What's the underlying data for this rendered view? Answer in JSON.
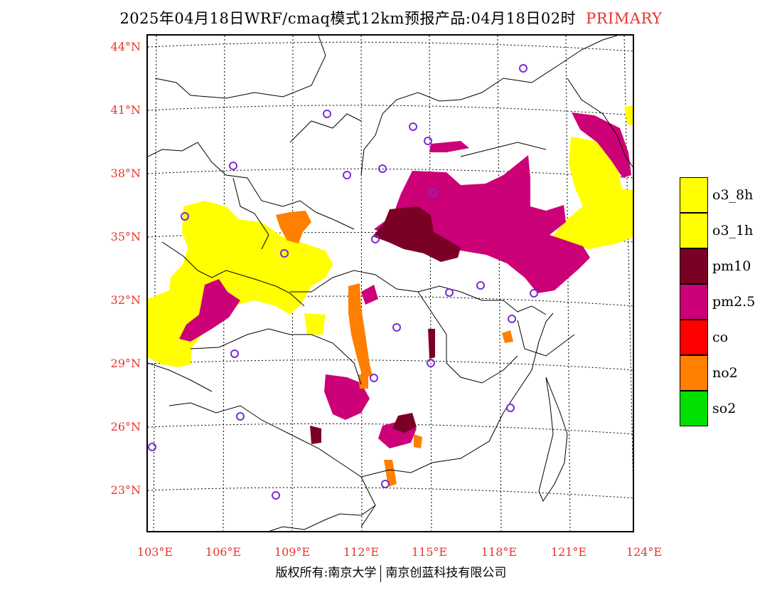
{
  "title": {
    "main": "2025年04月18日WRF/cmaq模式12km预报产品:04月18日02时",
    "tag": "PRIMARY"
  },
  "lat_labels": [
    "44°N",
    "41°N",
    "38°N",
    "35°N",
    "32°N",
    "29°N",
    "26°N",
    "23°N"
  ],
  "lon_labels": [
    "103°E",
    "106°E",
    "109°E",
    "112°E",
    "115°E",
    "118°E",
    "121°E",
    "124°E"
  ],
  "legend": [
    {
      "label": "o3_8h",
      "color": "#ffff00"
    },
    {
      "label": "o3_1h",
      "color": "#ffff00"
    },
    {
      "label": "pm10",
      "color": "#7a0025"
    },
    {
      "label": "pm2.5",
      "color": "#cc0077"
    },
    {
      "label": "co",
      "color": "#ff0000"
    },
    {
      "label": "no2",
      "color": "#ff7f00"
    },
    {
      "label": "so2",
      "color": "#00e000"
    }
  ],
  "footer": {
    "left": "版权所有:南京大学",
    "right": "南京创蓝科技有限公司"
  }
}
